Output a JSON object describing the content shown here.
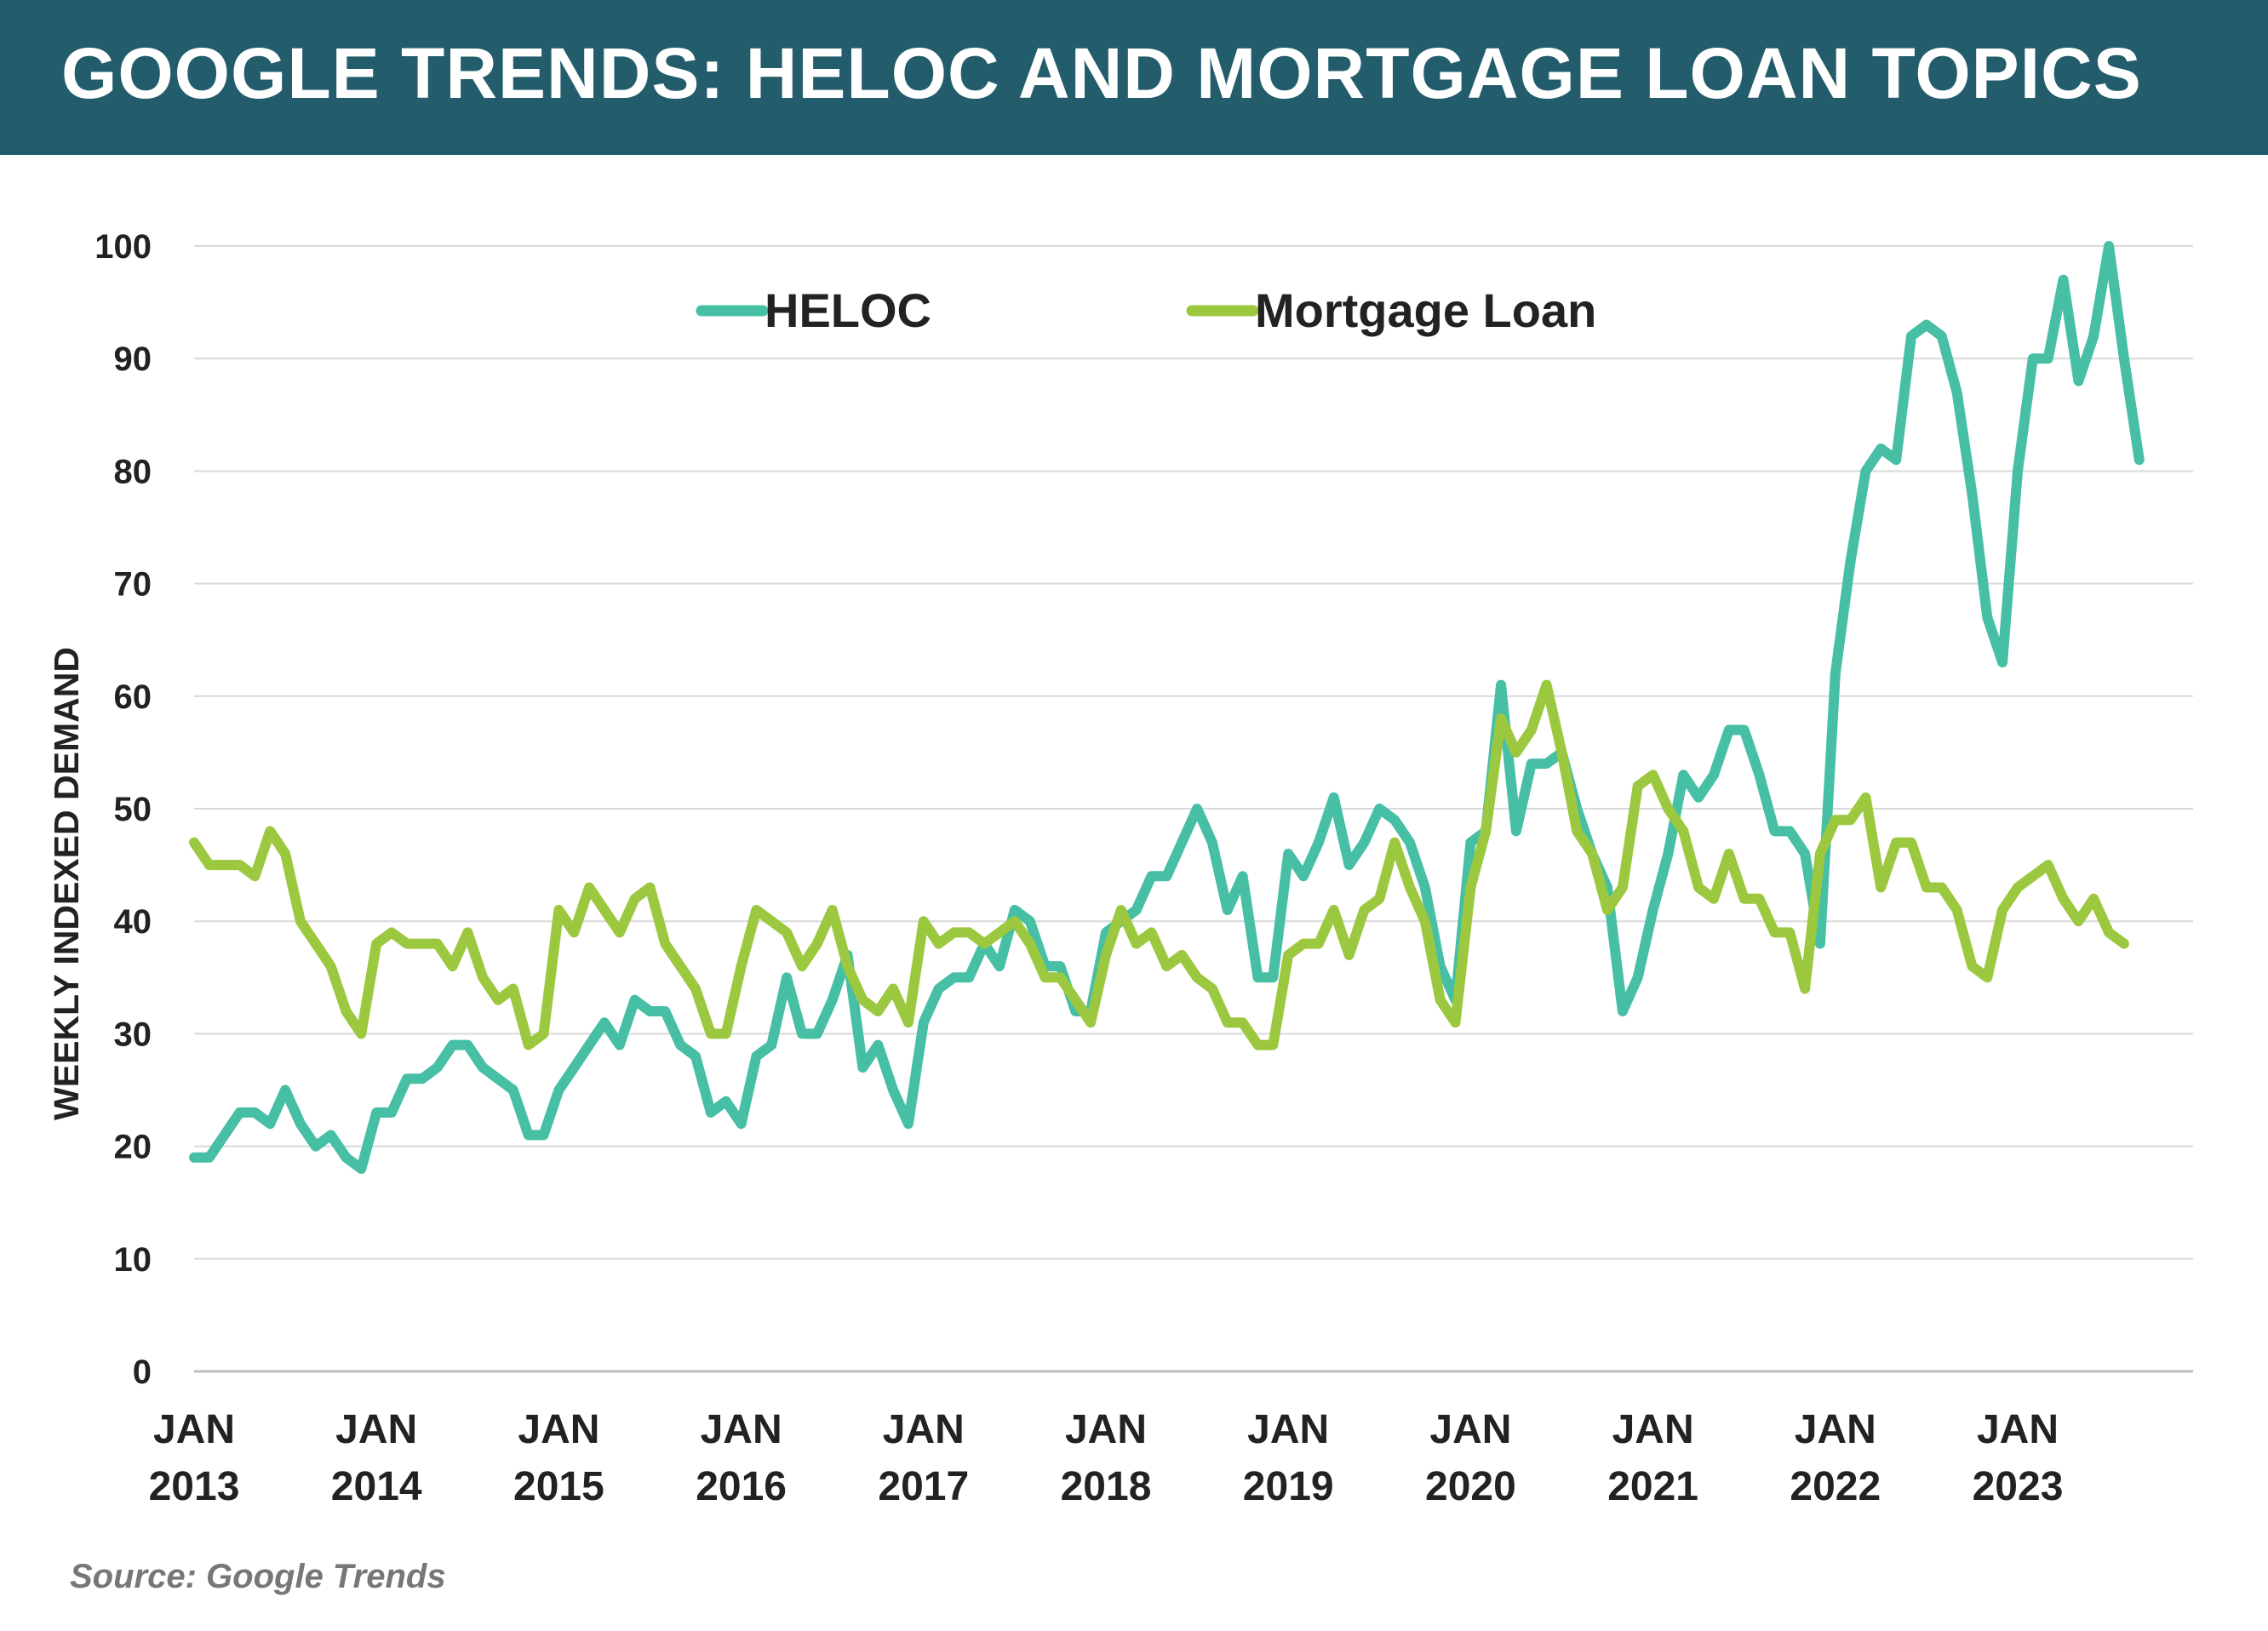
{
  "header": {
    "title": "GOOGLE TRENDS: HELOC AND MORTGAGE LOAN TOPICS"
  },
  "source": "Source: Google Trends",
  "chart_data": {
    "type": "line",
    "title": "GOOGLE TRENDS: HELOC AND MORTGAGE LOAN TOPICS",
    "ylabel": "WEEKLY INDEXED DEMAND",
    "xlabel": "",
    "ylim": [
      0,
      100
    ],
    "yticks": [
      0,
      10,
      20,
      30,
      40,
      50,
      60,
      70,
      80,
      90,
      100
    ],
    "xlim": [
      "2013-01",
      "2023-11"
    ],
    "xticks": [
      {
        "month": "JAN",
        "year": "2013",
        "date": "2013-01"
      },
      {
        "month": "JAN",
        "year": "2014",
        "date": "2014-01"
      },
      {
        "month": "JAN",
        "year": "2015",
        "date": "2015-01"
      },
      {
        "month": "JAN",
        "year": "2016",
        "date": "2016-01"
      },
      {
        "month": "JAN",
        "year": "2017",
        "date": "2017-01"
      },
      {
        "month": "JAN",
        "year": "2018",
        "date": "2018-01"
      },
      {
        "month": "JAN",
        "year": "2019",
        "date": "2019-01"
      },
      {
        "month": "JAN",
        "year": "2020",
        "date": "2020-01"
      },
      {
        "month": "JAN",
        "year": "2021",
        "date": "2021-01"
      },
      {
        "month": "JAN",
        "year": "2022",
        "date": "2022-01"
      },
      {
        "month": "JAN",
        "year": "2023",
        "date": "2023-01"
      }
    ],
    "grid": true,
    "legend": "top-center",
    "series": [
      {
        "name": "HELOC",
        "color": "#47bfa5",
        "points": [
          [
            "2013-01",
            19
          ],
          [
            "2013-02",
            19
          ],
          [
            "2013-04",
            23
          ],
          [
            "2013-05",
            23
          ],
          [
            "2013-06",
            22
          ],
          [
            "2013-07",
            25
          ],
          [
            "2013-08",
            22
          ],
          [
            "2013-09",
            20
          ],
          [
            "2013-10",
            21
          ],
          [
            "2013-11",
            19
          ],
          [
            "2013-12",
            18
          ],
          [
            "2014-01",
            23
          ],
          [
            "2014-02",
            23
          ],
          [
            "2014-03",
            26
          ],
          [
            "2014-04",
            26
          ],
          [
            "2014-05",
            27
          ],
          [
            "2014-06",
            29
          ],
          [
            "2014-07",
            29
          ],
          [
            "2014-08",
            27
          ],
          [
            "2014-09",
            26
          ],
          [
            "2014-10",
            25
          ],
          [
            "2014-11",
            21
          ],
          [
            "2014-12",
            21
          ],
          [
            "2015-01",
            25
          ],
          [
            "2015-02",
            27
          ],
          [
            "2015-03",
            29
          ],
          [
            "2015-04",
            31
          ],
          [
            "2015-05",
            29
          ],
          [
            "2015-06",
            33
          ],
          [
            "2015-07",
            32
          ],
          [
            "2015-08",
            32
          ],
          [
            "2015-09",
            29
          ],
          [
            "2015-10",
            28
          ],
          [
            "2015-11",
            23
          ],
          [
            "2015-12",
            24
          ],
          [
            "2016-01",
            22
          ],
          [
            "2016-02",
            28
          ],
          [
            "2016-03",
            29
          ],
          [
            "2016-04",
            35
          ],
          [
            "2016-05",
            30
          ],
          [
            "2016-06",
            30
          ],
          [
            "2016-07",
            33
          ],
          [
            "2016-08",
            37
          ],
          [
            "2016-09",
            27
          ],
          [
            "2016-10",
            29
          ],
          [
            "2016-11",
            25
          ],
          [
            "2016-12",
            22
          ],
          [
            "2017-01",
            31
          ],
          [
            "2017-02",
            34
          ],
          [
            "2017-03",
            35
          ],
          [
            "2017-04",
            35
          ],
          [
            "2017-05",
            38
          ],
          [
            "2017-06",
            36
          ],
          [
            "2017-07",
            41
          ],
          [
            "2017-08",
            40
          ],
          [
            "2017-09",
            36
          ],
          [
            "2017-10",
            36
          ],
          [
            "2017-11",
            32
          ],
          [
            "2017-12",
            32
          ],
          [
            "2018-01",
            39
          ],
          [
            "2018-02",
            40
          ],
          [
            "2018-03",
            41
          ],
          [
            "2018-04",
            44
          ],
          [
            "2018-05",
            44
          ],
          [
            "2018-06",
            47
          ],
          [
            "2018-07",
            50
          ],
          [
            "2018-08",
            47
          ],
          [
            "2018-09",
            41
          ],
          [
            "2018-10",
            44
          ],
          [
            "2018-11",
            35
          ],
          [
            "2018-12",
            35
          ],
          [
            "2019-01",
            46
          ],
          [
            "2019-02",
            44
          ],
          [
            "2019-03",
            47
          ],
          [
            "2019-04",
            51
          ],
          [
            "2019-05",
            45
          ],
          [
            "2019-06",
            47
          ],
          [
            "2019-07",
            50
          ],
          [
            "2019-08",
            49
          ],
          [
            "2019-09",
            47
          ],
          [
            "2019-10",
            43
          ],
          [
            "2019-11",
            36
          ],
          [
            "2019-12",
            33
          ],
          [
            "2020-01",
            47
          ],
          [
            "2020-02",
            48
          ],
          [
            "2020-03",
            61
          ],
          [
            "2020-04",
            48
          ],
          [
            "2020-05",
            54
          ],
          [
            "2020-06",
            54
          ],
          [
            "2020-07",
            55
          ],
          [
            "2020-08",
            50
          ],
          [
            "2020-09",
            46
          ],
          [
            "2020-10",
            43
          ],
          [
            "2020-11",
            32
          ],
          [
            "2020-12",
            35
          ],
          [
            "2021-01",
            41
          ],
          [
            "2021-02",
            46
          ],
          [
            "2021-03",
            53
          ],
          [
            "2021-04",
            51
          ],
          [
            "2021-05",
            53
          ],
          [
            "2021-06",
            57
          ],
          [
            "2021-07",
            57
          ],
          [
            "2021-08",
            53
          ],
          [
            "2021-09",
            48
          ],
          [
            "2021-10",
            48
          ],
          [
            "2021-11",
            46
          ],
          [
            "2021-12",
            38
          ],
          [
            "2022-01",
            62
          ],
          [
            "2022-02",
            72
          ],
          [
            "2022-03",
            80
          ],
          [
            "2022-04",
            82
          ],
          [
            "2022-05",
            81
          ],
          [
            "2022-06",
            92
          ],
          [
            "2022-07",
            93
          ],
          [
            "2022-08",
            92
          ],
          [
            "2022-09",
            87
          ],
          [
            "2022-10",
            78
          ],
          [
            "2022-11",
            67
          ],
          [
            "2022-12",
            63
          ],
          [
            "2023-01",
            80
          ],
          [
            "2023-02",
            90
          ],
          [
            "2023-03",
            90
          ],
          [
            "2023-04",
            97
          ],
          [
            "2023-05",
            88
          ],
          [
            "2023-06",
            92
          ],
          [
            "2023-07",
            100
          ],
          [
            "2023-08",
            90
          ],
          [
            "2023-09",
            81
          ]
        ]
      },
      {
        "name": "Mortgage Loan",
        "color": "#9cc83f",
        "points": [
          [
            "2013-01",
            47
          ],
          [
            "2013-02",
            45
          ],
          [
            "2013-04",
            45
          ],
          [
            "2013-05",
            44
          ],
          [
            "2013-06",
            48
          ],
          [
            "2013-07",
            46
          ],
          [
            "2013-08",
            40
          ],
          [
            "2013-09",
            38
          ],
          [
            "2013-10",
            36
          ],
          [
            "2013-11",
            32
          ],
          [
            "2013-12",
            30
          ],
          [
            "2014-01",
            38
          ],
          [
            "2014-02",
            39
          ],
          [
            "2014-03",
            38
          ],
          [
            "2014-04",
            38
          ],
          [
            "2014-05",
            38
          ],
          [
            "2014-06",
            36
          ],
          [
            "2014-07",
            39
          ],
          [
            "2014-08",
            35
          ],
          [
            "2014-09",
            33
          ],
          [
            "2014-10",
            34
          ],
          [
            "2014-11",
            29
          ],
          [
            "2014-12",
            30
          ],
          [
            "2015-01",
            41
          ],
          [
            "2015-02",
            39
          ],
          [
            "2015-03",
            43
          ],
          [
            "2015-04",
            41
          ],
          [
            "2015-05",
            39
          ],
          [
            "2015-06",
            42
          ],
          [
            "2015-07",
            43
          ],
          [
            "2015-08",
            38
          ],
          [
            "2015-09",
            36
          ],
          [
            "2015-10",
            34
          ],
          [
            "2015-11",
            30
          ],
          [
            "2015-12",
            30
          ],
          [
            "2016-01",
            36
          ],
          [
            "2016-02",
            41
          ],
          [
            "2016-03",
            40
          ],
          [
            "2016-04",
            39
          ],
          [
            "2016-05",
            36
          ],
          [
            "2016-06",
            38
          ],
          [
            "2016-07",
            41
          ],
          [
            "2016-08",
            36
          ],
          [
            "2016-09",
            33
          ],
          [
            "2016-10",
            32
          ],
          [
            "2016-11",
            34
          ],
          [
            "2016-12",
            31
          ],
          [
            "2017-01",
            40
          ],
          [
            "2017-02",
            38
          ],
          [
            "2017-03",
            39
          ],
          [
            "2017-04",
            39
          ],
          [
            "2017-05",
            38
          ],
          [
            "2017-06",
            39
          ],
          [
            "2017-07",
            40
          ],
          [
            "2017-08",
            38
          ],
          [
            "2017-09",
            35
          ],
          [
            "2017-10",
            35
          ],
          [
            "2017-11",
            33
          ],
          [
            "2017-12",
            31
          ],
          [
            "2018-01",
            37
          ],
          [
            "2018-02",
            41
          ],
          [
            "2018-03",
            38
          ],
          [
            "2018-04",
            39
          ],
          [
            "2018-05",
            36
          ],
          [
            "2018-06",
            37
          ],
          [
            "2018-07",
            35
          ],
          [
            "2018-08",
            34
          ],
          [
            "2018-09",
            31
          ],
          [
            "2018-10",
            31
          ],
          [
            "2018-11",
            29
          ],
          [
            "2018-12",
            29
          ],
          [
            "2019-01",
            37
          ],
          [
            "2019-02",
            38
          ],
          [
            "2019-03",
            38
          ],
          [
            "2019-04",
            41
          ],
          [
            "2019-05",
            37
          ],
          [
            "2019-06",
            41
          ],
          [
            "2019-07",
            42
          ],
          [
            "2019-08",
            47
          ],
          [
            "2019-09",
            43
          ],
          [
            "2019-10",
            40
          ],
          [
            "2019-11",
            33
          ],
          [
            "2019-12",
            31
          ],
          [
            "2020-01",
            43
          ],
          [
            "2020-02",
            48
          ],
          [
            "2020-03",
            58
          ],
          [
            "2020-04",
            55
          ],
          [
            "2020-05",
            57
          ],
          [
            "2020-06",
            61
          ],
          [
            "2020-07",
            55
          ],
          [
            "2020-08",
            48
          ],
          [
            "2020-09",
            46
          ],
          [
            "2020-10",
            41
          ],
          [
            "2020-11",
            43
          ],
          [
            "2020-12",
            52
          ],
          [
            "2021-01",
            53
          ],
          [
            "2021-02",
            50
          ],
          [
            "2021-03",
            48
          ],
          [
            "2021-04",
            43
          ],
          [
            "2021-05",
            42
          ],
          [
            "2021-06",
            46
          ],
          [
            "2021-07",
            42
          ],
          [
            "2021-08",
            42
          ],
          [
            "2021-09",
            39
          ],
          [
            "2021-10",
            39
          ],
          [
            "2021-11",
            34
          ],
          [
            "2021-12",
            46
          ],
          [
            "2022-01",
            49
          ],
          [
            "2022-02",
            49
          ],
          [
            "2022-03",
            51
          ],
          [
            "2022-04",
            43
          ],
          [
            "2022-05",
            47
          ],
          [
            "2022-06",
            47
          ],
          [
            "2022-07",
            43
          ],
          [
            "2022-08",
            43
          ],
          [
            "2022-09",
            41
          ],
          [
            "2022-10",
            36
          ],
          [
            "2022-11",
            35
          ],
          [
            "2022-12",
            41
          ],
          [
            "2023-01",
            43
          ],
          [
            "2023-02",
            44
          ],
          [
            "2023-03",
            45
          ],
          [
            "2023-04",
            42
          ],
          [
            "2023-05",
            40
          ],
          [
            "2023-06",
            42
          ],
          [
            "2023-07",
            39
          ],
          [
            "2023-08",
            38
          ]
        ]
      }
    ]
  }
}
